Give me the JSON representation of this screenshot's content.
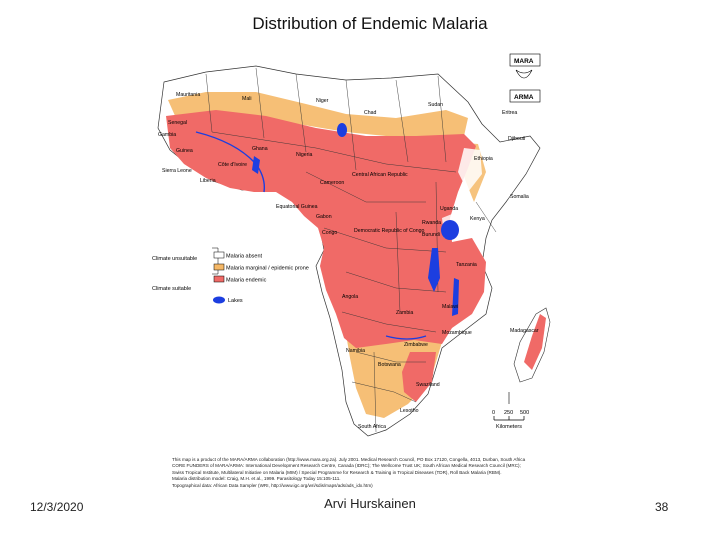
{
  "slide": {
    "title": "Distribution of Endemic Malaria",
    "date": "12/3/2020",
    "author": "Arvi Hurskainen",
    "page_number": "38"
  },
  "map": {
    "logos": {
      "mara": "MARA",
      "arma": "ARMA"
    },
    "legend": {
      "group_unsuitable": "Climate unsuitable",
      "group_suitable": "Climate suitable",
      "items": [
        {
          "label": "Malaria absent",
          "color": "#ffffff"
        },
        {
          "label": "Malaria marginal / epidemic prone",
          "color": "#f5b867"
        },
        {
          "label": "Malaria endemic",
          "color": "#f06a67"
        },
        {
          "label": "Lakes",
          "color": "#1c3ee0"
        }
      ]
    },
    "scale": {
      "ticks": [
        "0",
        "250",
        "500"
      ],
      "unit": "Kilometers"
    },
    "countries": {
      "mauritania": "Mauritania",
      "mali": "Mali",
      "niger": "Niger",
      "chad": "Chad",
      "sudan": "Sudan",
      "eritrea": "Eritrea",
      "djibouti": "Djibouti",
      "ethiopia": "Ethiopia",
      "somalia": "Somalia",
      "senegal": "Senegal",
      "gambia": "Gambia",
      "guinea": "Guinea",
      "sierra_leone": "Sierra Leone",
      "liberia": "Liberia",
      "cote_divoire": "Côte d'Ivoire",
      "ghana": "Ghana",
      "nigeria": "Nigeria",
      "cameroon": "Cameroon",
      "car": "Central African Republic",
      "eq_guinea": "Equatorial Guinea",
      "gabon": "Gabon",
      "congo": "Congo",
      "drc": "Democratic Republic of Congo",
      "uganda": "Uganda",
      "kenya": "Kenya",
      "rwanda": "Rwanda",
      "burundi": "Burundi",
      "tanzania": "Tanzania",
      "angola": "Angola",
      "zambia": "Zambia",
      "malawi": "Malawi",
      "mozambique": "Mozambique",
      "madagascar": "Madagascar",
      "zimbabwe": "Zimbabwe",
      "namibia": "Namibia",
      "botswana": "Botswana",
      "swaziland": "Swaziland",
      "lesotho": "Lesotho",
      "south_africa": "South Africa"
    }
  },
  "credits": [
    "This map is a product of the MARA/ARMA collaboration (http://www.mara.org.za). July 2001. Medical Research Council, PO Box 17120, Congella, 4013, Durban, South Africa",
    "CORE FUNDERS of MARA/ARMA: International Development Research Centre, Canada (IDRC); The Wellcome Trust UK; South African Medical Research Council (MRC);",
    "Swiss Tropical Institute, Multilateral Initiative on Malaria (MIM) / Special Programme for Research & Training in Tropical Diseases (TDR), Roll Back Malaria (RBM).",
    "Malaria distribution model: Craig, M.H. et al., 1999. Parasitology Today 15:105-111.",
    "Topographical data: African Data Sampler (WRI, http://www.igc.org/wri/sdis/maps/ads/ads_idx.htm)"
  ]
}
